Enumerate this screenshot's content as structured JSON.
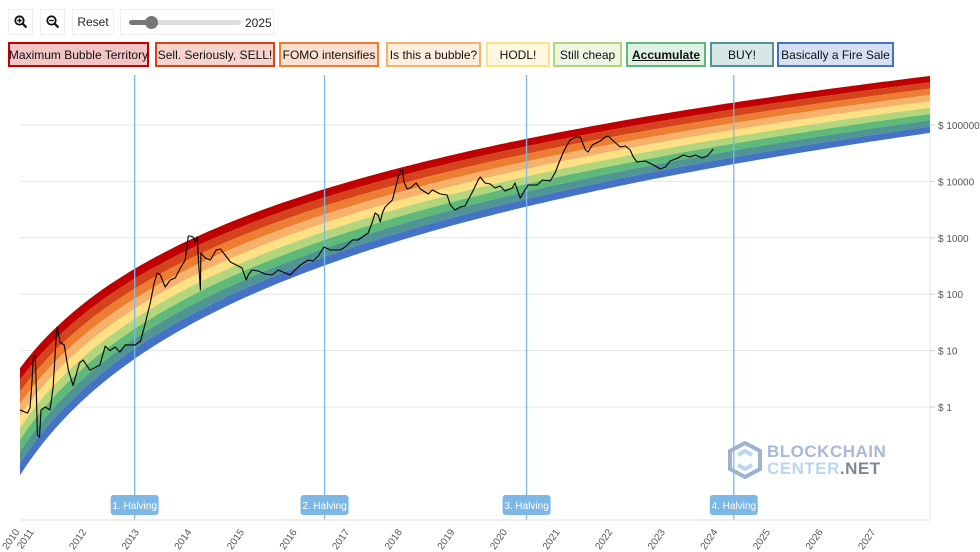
{
  "toolbar": {
    "zoom_in_icon": "zoom-in-magnifier-icon",
    "zoom_out_icon": "zoom-out-magnifier-icon",
    "reset_label": "Reset",
    "slider_value_label": "2025",
    "slider_fraction": 0.2
  },
  "legend": [
    {
      "label": "Maximum Bubble Territory",
      "color": "#c00000",
      "bg": "#f2c4c4"
    },
    {
      "label": "Sell. Seriously, SELL!",
      "color": "#d4431c",
      "bg": "#f6d3cb"
    },
    {
      "label": "FOMO intensifies",
      "color": "#ed7d31",
      "bg": "#fbe0cf"
    },
    {
      "label": "Is this a bubble?",
      "color": "#f6b26b",
      "bg": "#fdeedd"
    },
    {
      "label": "HODL!",
      "color": "#ffe082",
      "bg": "#fff8e0"
    },
    {
      "label": "Still cheap",
      "color": "#b3d67c",
      "bg": "#eff6e3"
    },
    {
      "label": "Accumulate",
      "color": "#5fb978",
      "bg": "#def1e3",
      "active": true
    },
    {
      "label": "BUY!",
      "color": "#4f9594",
      "bg": "#d7e6e6"
    },
    {
      "label": "Basically a Fire Sale",
      "color": "#4472c4",
      "bg": "#d6e0f2"
    }
  ],
  "watermark": "BLOCKCHAIN CENTER.NET",
  "chart_data": {
    "type": "line",
    "title": "",
    "xlabel": "",
    "ylabel": "",
    "y_scale": "log",
    "xlim": [
      2010.73,
      2028.03
    ],
    "ylim_log_decades": "approx $0.01 to $1000000",
    "grid": true,
    "x_tick_labels": [
      "2010",
      "2011",
      "2012",
      "2013",
      "2014",
      "2015",
      "2016",
      "2017",
      "2018",
      "2019",
      "2020",
      "2021",
      "2022",
      "2023",
      "2024",
      "2025",
      "2026",
      "2027"
    ],
    "y_ticks": [
      1,
      10,
      100,
      1000,
      10000,
      100000
    ],
    "y_tick_labels": [
      "$ 1",
      "$ 10",
      "$ 100",
      "$ 1000",
      "$ 10000",
      "$ 100000"
    ],
    "band_colors": [
      "#c00000",
      "#d4431c",
      "#ed7d31",
      "#f6b26b",
      "#ffe082",
      "#b3d67c",
      "#5fb978",
      "#4f9594",
      "#4472c4"
    ],
    "halvings": [
      {
        "label": "1. Halving",
        "year": 2012.91
      },
      {
        "label": "2. Halving",
        "year": 2016.52
      },
      {
        "label": "3. Halving",
        "year": 2020.36
      },
      {
        "label": "4. Halving",
        "year": 2024.3
      }
    ],
    "price_series": {
      "x": [
        2010.73,
        2010.87,
        2010.92,
        2010.96,
        2010.98,
        2011.02,
        2011.04,
        2011.06,
        2011.1,
        2011.13,
        2011.21,
        2011.3,
        2011.36,
        2011.42,
        2011.44,
        2011.49,
        2011.57,
        2011.65,
        2011.74,
        2011.86,
        2011.93,
        2012.06,
        2012.25,
        2012.35,
        2012.44,
        2012.54,
        2012.63,
        2012.73,
        2012.92,
        2013.02,
        2013.11,
        2013.21,
        2013.28,
        2013.34,
        2013.4,
        2013.49,
        2013.59,
        2013.68,
        2013.78,
        2013.87,
        2013.93,
        2013.97,
        2014.02,
        2014.06,
        2014.1,
        2014.12,
        2014.16,
        2014.17,
        2014.25,
        2014.35,
        2014.46,
        2014.54,
        2014.63,
        2014.73,
        2014.88,
        2014.95,
        2015.03,
        2015.07,
        2015.14,
        2015.26,
        2015.39,
        2015.52,
        2015.64,
        2015.77,
        2015.87,
        2015.96,
        2016.06,
        2016.21,
        2016.3,
        2016.4,
        2016.51,
        2016.63,
        2016.82,
        2016.91,
        2017.05,
        2017.16,
        2017.24,
        2017.35,
        2017.43,
        2017.48,
        2017.54,
        2017.58,
        2017.62,
        2017.67,
        2017.73,
        2017.81,
        2017.86,
        2017.92,
        2017.96,
        2018.0,
        2018.03,
        2018.09,
        2018.15,
        2018.26,
        2018.34,
        2018.49,
        2018.57,
        2018.72,
        2018.85,
        2018.91,
        2019.0,
        2019.1,
        2019.19,
        2019.29,
        2019.35,
        2019.44,
        2019.48,
        2019.57,
        2019.67,
        2019.76,
        2019.86,
        2019.95,
        2020.09,
        2020.14,
        2020.24,
        2020.33,
        2020.39,
        2020.56,
        2020.66,
        2020.81,
        2020.9,
        2020.96,
        2021.06,
        2021.13,
        2021.19,
        2021.29,
        2021.38,
        2021.48,
        2021.53,
        2021.61,
        2021.76,
        2021.86,
        2021.91,
        2021.99,
        2022.14,
        2022.24,
        2022.33,
        2022.39,
        2022.46,
        2022.62,
        2022.81,
        2022.9,
        2023.0,
        2023.09,
        2023.24,
        2023.34,
        2023.47,
        2023.57,
        2023.7,
        2023.79,
        2023.85,
        2023.91
      ],
      "y": [
        0.89,
        0.78,
        0.96,
        3.0,
        7.4,
        8.4,
        2.0,
        0.32,
        0.29,
        0.89,
        1.0,
        0.89,
        2.2,
        19,
        26,
        14,
        12.6,
        4.5,
        2.4,
        6.0,
        6.8,
        4.5,
        5.6,
        12,
        10,
        11.6,
        9.4,
        12.6,
        12.6,
        14.8,
        30,
        73,
        158,
        238,
        219,
        134,
        179,
        194,
        292,
        404,
        1077,
        1077,
        1033,
        843,
        1033,
        439,
        119,
        537,
        439,
        404,
        608,
        633,
        495,
        372,
        316,
        292,
        179,
        219,
        269,
        258,
        228,
        219,
        269,
        238,
        219,
        269,
        330,
        404,
        388,
        476,
        687,
        608,
        608,
        687,
        914,
        914,
        1033,
        1217,
        1906,
        2752,
        2521,
        1906,
        2752,
        3517,
        3973,
        4677,
        7046,
        11970,
        15920,
        15920,
        9750,
        7330,
        7640,
        9370,
        7330,
        5980,
        7046,
        5980,
        5740,
        3817,
        3113,
        3517,
        3664,
        5510,
        7046,
        10590,
        11970,
        9370,
        8990,
        7640,
        8280,
        6760,
        7640,
        9370,
        5080,
        7046,
        8630,
        8630,
        10590,
        10160,
        14090,
        19540,
        33190,
        44160,
        54200,
        61240,
        61240,
        36060,
        33190,
        44160,
        52000,
        61240,
        63830,
        54200,
        40740,
        42400,
        36060,
        27100,
        22080,
        23010,
        18750,
        16600,
        17990,
        23010,
        26000,
        29380,
        27100,
        29380,
        26000,
        28180,
        31920,
        37500
      ]
    }
  }
}
